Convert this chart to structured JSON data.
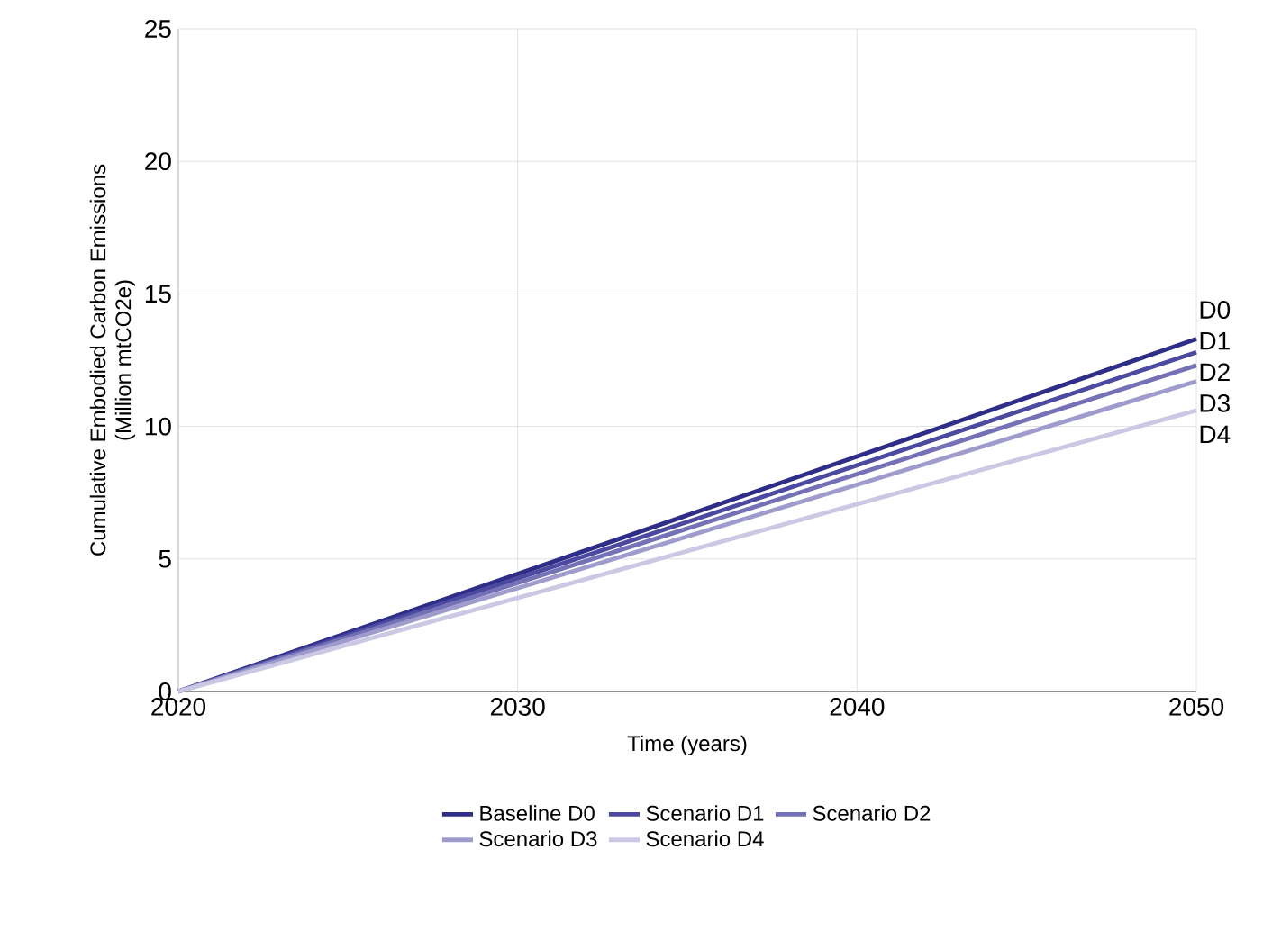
{
  "chart_data": {
    "type": "line",
    "xlabel": "Time (years)",
    "ylabel": "Cumulative Embodied Carbon Emissions\n(Million mtCO2e)",
    "x": [
      2020,
      2050
    ],
    "series": [
      {
        "name": "Baseline D0",
        "color": "#2e2d87",
        "values": [
          0,
          13.3
        ]
      },
      {
        "name": "Scenario D1",
        "color": "#4b4aa0",
        "values": [
          0,
          12.8
        ]
      },
      {
        "name": "Scenario D2",
        "color": "#7471b6",
        "values": [
          0,
          12.3
        ]
      },
      {
        "name": "Scenario D3",
        "color": "#9f9ccd",
        "values": [
          0,
          11.7
        ]
      },
      {
        "name": "Scenario D4",
        "color": "#cbc8e4",
        "values": [
          0,
          10.6
        ]
      }
    ],
    "annotations": [
      "D0",
      "D1",
      "D2",
      "D3",
      "D4"
    ],
    "xlim": [
      2020,
      2050
    ],
    "xticks": [
      2020,
      2030,
      2040,
      2050
    ],
    "ylim": [
      0,
      25
    ],
    "yticks": [
      0,
      5,
      10,
      15,
      20,
      25
    ],
    "grid": true,
    "legend": "bottom",
    "marker": "none",
    "line_style": "solid"
  }
}
